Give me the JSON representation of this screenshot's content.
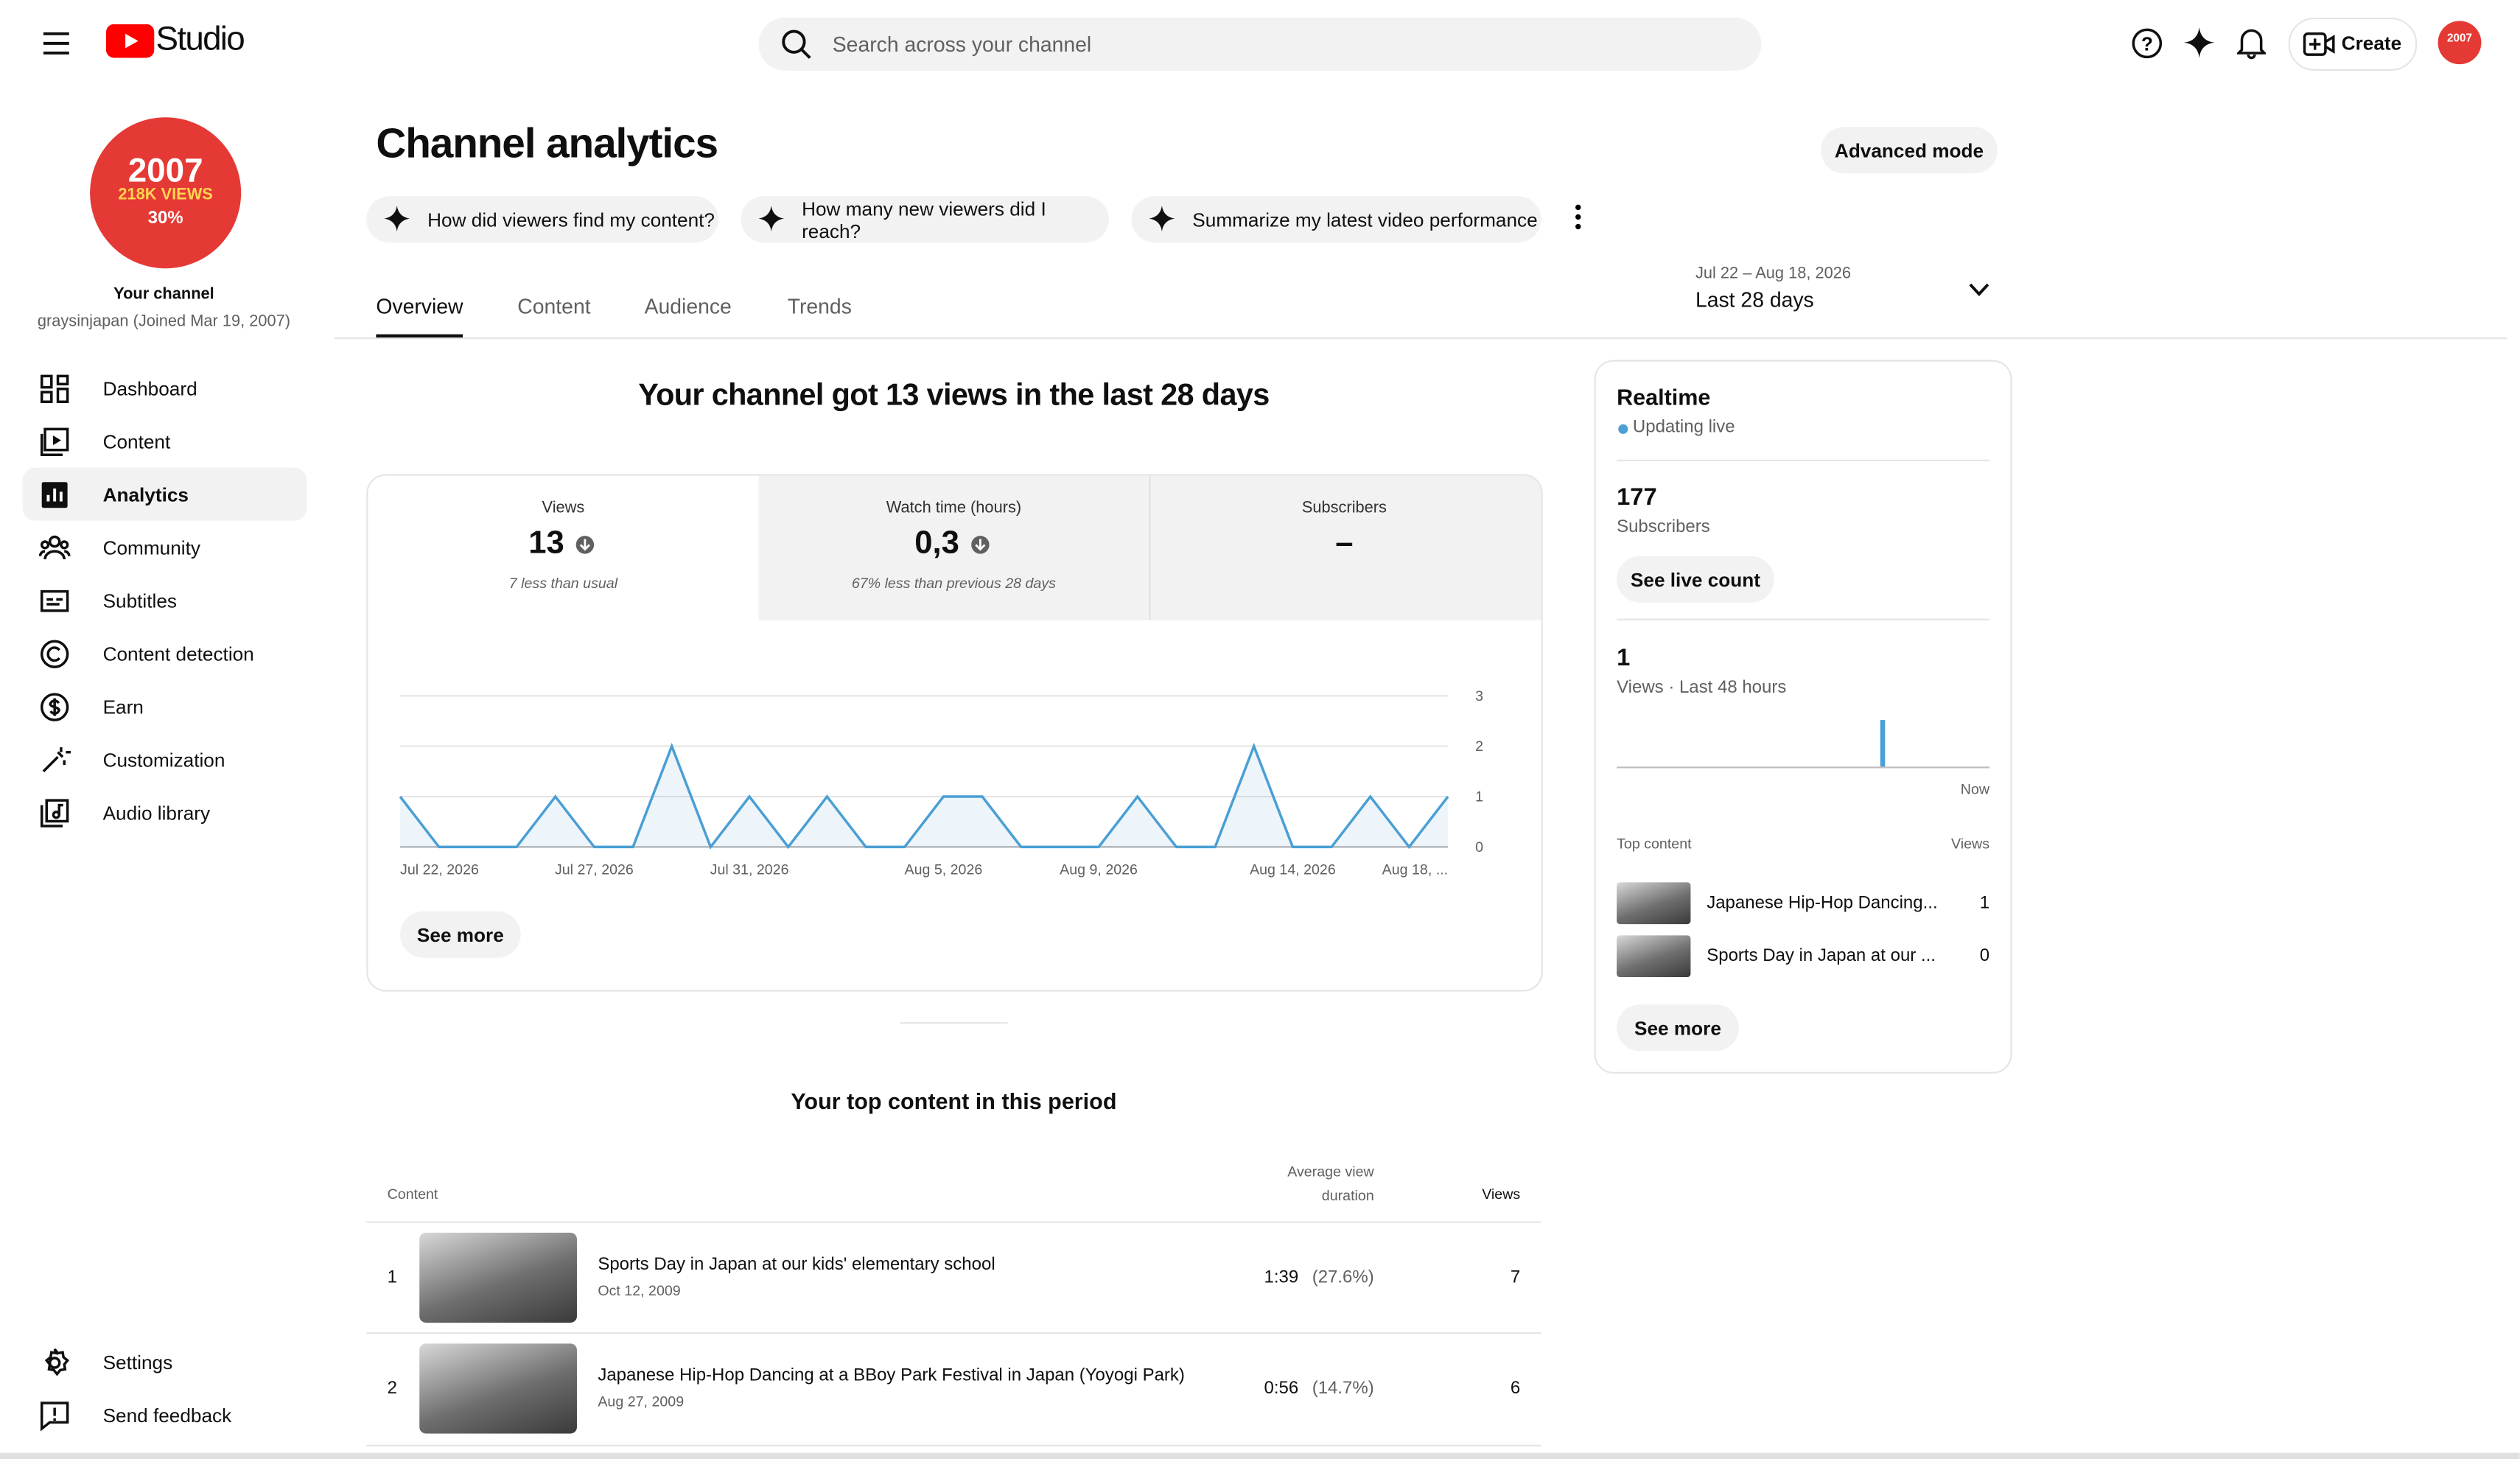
{
  "header": {
    "logo": "Studio",
    "search_placeholder": "Search across your channel",
    "create": "Create"
  },
  "sidebar": {
    "channel_badge": {
      "year": "2007",
      "views": "218K VIEWS",
      "pct": "30%"
    },
    "channel_label": "Your channel",
    "channel_handle": "graysinjapan (Joined Mar 19, 2007)",
    "nav": [
      "Dashboard",
      "Content",
      "Analytics",
      "Community",
      "Subtitles",
      "Content detection",
      "Earn",
      "Customization",
      "Audio library"
    ],
    "footer_nav": [
      "Settings",
      "Send feedback"
    ]
  },
  "page": {
    "title": "Channel analytics",
    "advanced_mode": "Advanced mode",
    "suggestions": [
      "How did viewers find my content?",
      "How many new viewers did I reach?",
      "Summarize my latest video performance"
    ],
    "tabs": [
      "Overview",
      "Content",
      "Audience",
      "Trends"
    ],
    "date_range": "Jul 22 – Aug 18, 2026",
    "period": "Last 28 days"
  },
  "summary": {
    "headline": "Your channel got 13 views in the last 28 days",
    "metrics": [
      {
        "label": "Views",
        "value": "13",
        "note": "7 less than usual"
      },
      {
        "label": "Watch time (hours)",
        "value": "0,3",
        "note": "67% less than previous 28 days"
      },
      {
        "label": "Subscribers",
        "value": "–"
      }
    ],
    "see_more": "See more"
  },
  "chart": {
    "type": "line",
    "x": [
      "Jul 22, 2026",
      null,
      null,
      null,
      null,
      "Jul 27, 2026",
      null,
      null,
      null,
      "Jul 31, 2026",
      null,
      null,
      null,
      null,
      "Aug 5, 2026",
      null,
      null,
      null,
      "Aug 9, 2026",
      null,
      null,
      null,
      null,
      "Aug 14, 2026",
      null,
      null,
      null,
      "Aug 18, ..."
    ],
    "values": [
      1,
      0,
      0,
      0,
      1,
      0,
      0,
      2,
      0,
      1,
      0,
      1,
      0,
      0,
      1,
      1,
      0,
      0,
      0,
      1,
      0,
      0,
      2,
      0,
      0,
      1,
      0,
      1
    ],
    "ylim": [
      0,
      3
    ],
    "yticks": [
      0,
      1,
      2,
      3
    ],
    "color": "#4a9fd4",
    "grid": true
  },
  "top_content": {
    "title": "Your top content in this period",
    "columns": [
      "Content",
      "Average view duration",
      "Views"
    ],
    "rows": [
      {
        "rank": "1",
        "title": "Sports Day in Japan at our kids' elementary school",
        "date": "Oct 12, 2009",
        "duration": "1:39",
        "percent": "(27.6%)",
        "views": "7"
      },
      {
        "rank": "2",
        "title": "Japanese Hip-Hop Dancing at a BBoy Park Festival in Japan (Yoyogi Park)",
        "date": "Aug 27, 2009",
        "duration": "0:56",
        "percent": "(14.7%)",
        "views": "6"
      }
    ]
  },
  "realtime": {
    "title": "Realtime",
    "status": "Updating live",
    "subscribers": "177",
    "subscribers_label": "Subscribers",
    "see_live_count": "See live count",
    "views": "1",
    "views_label": "Views · Last 48 hours",
    "now": "Now",
    "top_content_label": "Top content",
    "views_column": "Views",
    "items": [
      {
        "title": "Japanese Hip-Hop Dancing...",
        "views": "1"
      },
      {
        "title": "Sports Day in Japan at our ...",
        "views": "0"
      }
    ],
    "see_more": "See more"
  }
}
